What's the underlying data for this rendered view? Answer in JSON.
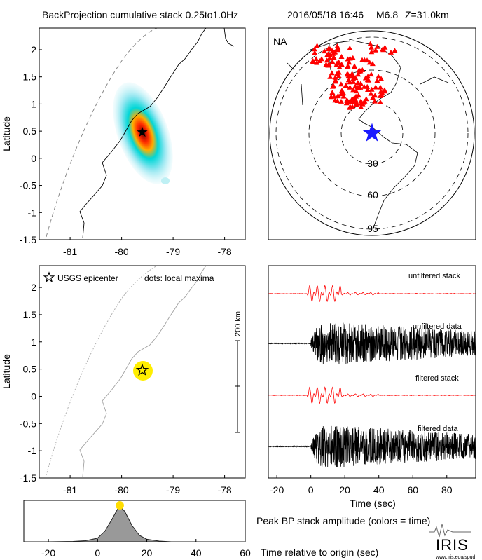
{
  "header": {
    "title": "BackProjection cumulative stack 0.25to1.0Hz",
    "event_date": "2016/05/18 16:46",
    "magnitude": "M6.8",
    "depth": "Z=31.0km"
  },
  "map_top": {
    "ylabel": "Latitude",
    "xlim": [
      -81.6,
      -77.6
    ],
    "ylim": [
      -1.5,
      2.4
    ],
    "x_ticks": [
      "-81",
      "-80",
      "-79",
      "-78"
    ],
    "y_ticks": [
      "2",
      "1.5",
      "1",
      "0.5",
      "0",
      "-0.5",
      "-1",
      "-1.5"
    ],
    "epicenter": {
      "lon": -79.6,
      "lat": 0.48
    }
  },
  "globe": {
    "network_label": "NA",
    "ring_labels": [
      "30",
      "60",
      "95"
    ],
    "epicenter_color": "#1a1aff",
    "station_color": "#ff0000"
  },
  "map_bottom": {
    "ylabel": "Latitude",
    "legend_star": "USGS epicenter",
    "legend_dots": "dots: local maxima",
    "scale_label": "200 km",
    "x_ticks": [
      "-81",
      "-80",
      "-79",
      "-78"
    ],
    "y_ticks": [
      "2",
      "1.5",
      "1",
      "0.5",
      "0",
      "-0.5",
      "-1",
      "-1.5"
    ],
    "maxima_color": "#ffee00"
  },
  "traces": {
    "labels": [
      "unfiltered stack",
      "unfiltered data",
      "filtered stack",
      "filtered data"
    ],
    "x_ticks": [
      "-20",
      "0",
      "20",
      "40",
      "60",
      "80"
    ],
    "xlim": [
      -25,
      97
    ],
    "xlabel": "Time (sec)",
    "stack_color": "#ff0000",
    "data_color": "#000000"
  },
  "peak": {
    "caption": "Peak BP stack amplitude (colors = time)",
    "xlabel": "Time relative to origin (sec)",
    "x_ticks": [
      "-20",
      "0",
      "20",
      "40",
      "60"
    ],
    "peak_color": "#ffdd00"
  },
  "logo": {
    "brand": "IRIS",
    "url": "www.iris.edu/spud"
  },
  "chart_data": [
    {
      "type": "heatmap",
      "name_ref": "cumulative back-projection stack",
      "xlim": [
        -81.6,
        -77.6
      ],
      "ylim": [
        -1.5,
        2.4
      ],
      "peak": {
        "lon": -79.6,
        "lat": 0.48
      }
    },
    {
      "type": "scatter",
      "name_ref": "local maxima",
      "points": [
        {
          "lon": -79.6,
          "lat": 0.48
        }
      ]
    },
    {
      "type": "area",
      "name_ref": "peak BP stack amplitude",
      "xlim": [
        -30,
        60
      ],
      "x": [
        -30,
        -20,
        -10,
        -5,
        0,
        3,
        6,
        8,
        9,
        11,
        14,
        17,
        20,
        25,
        30,
        60
      ],
      "values": [
        0,
        0,
        0.01,
        0.03,
        0.1,
        0.3,
        0.65,
        0.9,
        1.0,
        0.85,
        0.45,
        0.18,
        0.07,
        0.02,
        0,
        0
      ],
      "peak_time": 9
    }
  ]
}
